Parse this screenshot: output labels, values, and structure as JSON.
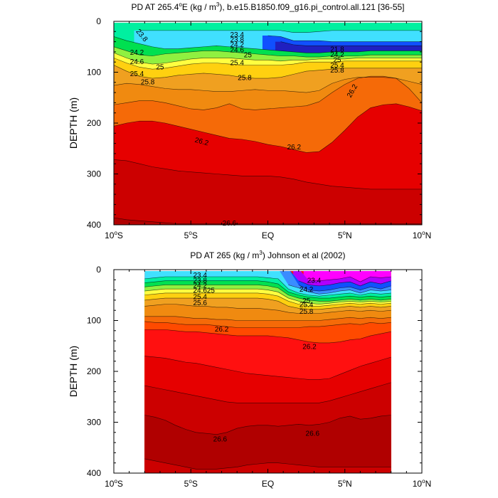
{
  "chart_data": [
    {
      "type": "contour",
      "title_parts": [
        "PD AT 265.4",
        "o",
        "E (kg / m",
        "3",
        "), b.e15.B1850.f09_g16.pi_control.all.121 [36-55]"
      ],
      "xlabel": "",
      "ylabel": "DEPTH (m)",
      "xlim": [
        -10,
        10
      ],
      "ylim": [
        400,
        0
      ],
      "x_ticks": [
        {
          "value": -10,
          "num": "10",
          "deg": "o",
          "suf": "S"
        },
        {
          "value": -5,
          "num": "5",
          "deg": "o",
          "suf": "S"
        },
        {
          "value": 0,
          "num": "EQ",
          "deg": "",
          "suf": ""
        },
        {
          "value": 5,
          "num": "5",
          "deg": "o",
          "suf": "N"
        },
        {
          "value": 10,
          "num": "10",
          "deg": "o",
          "suf": "N"
        }
      ],
      "y_ticks": [
        {
          "value": 0,
          "label": "0"
        },
        {
          "value": 100,
          "label": "100"
        },
        {
          "value": 200,
          "label": "200"
        },
        {
          "value": 300,
          "label": "300"
        },
        {
          "value": 400,
          "label": "400"
        }
      ],
      "data_xrange": [
        -10,
        10
      ],
      "contour_labels": [
        {
          "text": "23.8",
          "x": -8.2,
          "y": 28,
          "rot": 50
        },
        {
          "text": "23.4",
          "x": -2.0,
          "y": 27,
          "rot": 0
        },
        {
          "text": "23.8",
          "x": -2.0,
          "y": 37,
          "rot": 0
        },
        {
          "text": "24.2",
          "x": -2.0,
          "y": 47,
          "rot": 0
        },
        {
          "text": "24.6",
          "x": -2.0,
          "y": 57,
          "rot": 0
        },
        {
          "text": "25",
          "x": -1.3,
          "y": 67,
          "rot": 0
        },
        {
          "text": "24.2",
          "x": -8.5,
          "y": 62,
          "rot": 0
        },
        {
          "text": "24.6",
          "x": -8.5,
          "y": 80,
          "rot": 0
        },
        {
          "text": "25",
          "x": -7.0,
          "y": 91,
          "rot": 0
        },
        {
          "text": "25.4",
          "x": -2.0,
          "y": 82,
          "rot": 0
        },
        {
          "text": "25.4",
          "x": -8.5,
          "y": 104,
          "rot": 0
        },
        {
          "text": "25.8",
          "x": -7.8,
          "y": 120,
          "rot": 0
        },
        {
          "text": "25.8",
          "x": -1.5,
          "y": 112,
          "rot": 0
        },
        {
          "text": "21.8",
          "x": 4.5,
          "y": 56,
          "rot": 0
        },
        {
          "text": "24.2",
          "x": 4.5,
          "y": 66,
          "rot": 0
        },
        {
          "text": "25",
          "x": 4.5,
          "y": 77,
          "rot": 0
        },
        {
          "text": "25.4",
          "x": 4.5,
          "y": 87,
          "rot": 0
        },
        {
          "text": "25.8",
          "x": 4.5,
          "y": 97,
          "rot": 0
        },
        {
          "text": "26.2",
          "x": 5.5,
          "y": 137,
          "rot": -60
        },
        {
          "text": "26.2",
          "x": -4.3,
          "y": 237,
          "rot": 15
        },
        {
          "text": "26.2",
          "x": 1.7,
          "y": 248,
          "rot": 0
        },
        {
          "text": "26.6",
          "x": -2.5,
          "y": 398,
          "rot": 0
        }
      ]
    },
    {
      "type": "contour",
      "title_parts": [
        "PD AT 265 (kg / m",
        "3",
        ") Johnson et al (2002)"
      ],
      "xlabel": "",
      "ylabel": "DEPTH (m)",
      "xlim": [
        -10,
        10
      ],
      "ylim": [
        400,
        0
      ],
      "x_ticks": [
        {
          "value": -10,
          "num": "10",
          "deg": "o",
          "suf": "S"
        },
        {
          "value": -5,
          "num": "5",
          "deg": "o",
          "suf": "S"
        },
        {
          "value": 0,
          "num": "EQ",
          "deg": "",
          "suf": ""
        },
        {
          "value": 5,
          "num": "5",
          "deg": "o",
          "suf": "N"
        },
        {
          "value": 10,
          "num": "10",
          "deg": "o",
          "suf": "N"
        }
      ],
      "y_ticks": [
        {
          "value": 0,
          "label": "0"
        },
        {
          "value": 100,
          "label": "100"
        },
        {
          "value": 200,
          "label": "200"
        },
        {
          "value": 300,
          "label": "300"
        },
        {
          "value": 400,
          "label": "400"
        }
      ],
      "data_xrange": [
        -8,
        8
      ],
      "contour_labels": [
        {
          "text": "23.4",
          "x": -4.4,
          "y": 12,
          "rot": 0
        },
        {
          "text": "23.8",
          "x": -4.4,
          "y": 22,
          "rot": 0
        },
        {
          "text": "24.2",
          "x": -4.4,
          "y": 32,
          "rot": 0
        },
        {
          "text": "24.6",
          "x": -4.4,
          "y": 42,
          "rot": 0
        },
        {
          "text": "25",
          "x": -3.7,
          "y": 42,
          "rot": 0
        },
        {
          "text": "25.4",
          "x": -4.4,
          "y": 54,
          "rot": 0
        },
        {
          "text": "25.6",
          "x": -4.4,
          "y": 66,
          "rot": 0
        },
        {
          "text": "23.4",
          "x": 3.0,
          "y": 22,
          "rot": 0
        },
        {
          "text": "24.2",
          "x": 2.5,
          "y": 40,
          "rot": 0
        },
        {
          "text": "25",
          "x": 2.5,
          "y": 62,
          "rot": 0
        },
        {
          "text": "25.4",
          "x": 2.5,
          "y": 70,
          "rot": 0
        },
        {
          "text": "25.8",
          "x": 2.5,
          "y": 83,
          "rot": 0
        },
        {
          "text": "26.2",
          "x": -3.0,
          "y": 118,
          "rot": 0
        },
        {
          "text": "26.2",
          "x": 2.7,
          "y": 152,
          "rot": 0
        },
        {
          "text": "26.6",
          "x": -3.1,
          "y": 334,
          "rot": 0
        },
        {
          "text": "26.6",
          "x": 2.9,
          "y": 323,
          "rot": 0
        }
      ]
    }
  ],
  "colors": {
    "levels": [
      "#aaaaaa",
      "#ff00ff",
      "#b000ff",
      "#2020c0",
      "#1050ff",
      "#3a8cff",
      "#40e0ff",
      "#00f0a0",
      "#00e050",
      "#90f040",
      "#ffff40",
      "#ffd010",
      "#f0a020",
      "#f08a10",
      "#f56a08",
      "#ff4a00",
      "#ff1010",
      "#e60000",
      "#cc0000",
      "#b00000"
    ]
  }
}
